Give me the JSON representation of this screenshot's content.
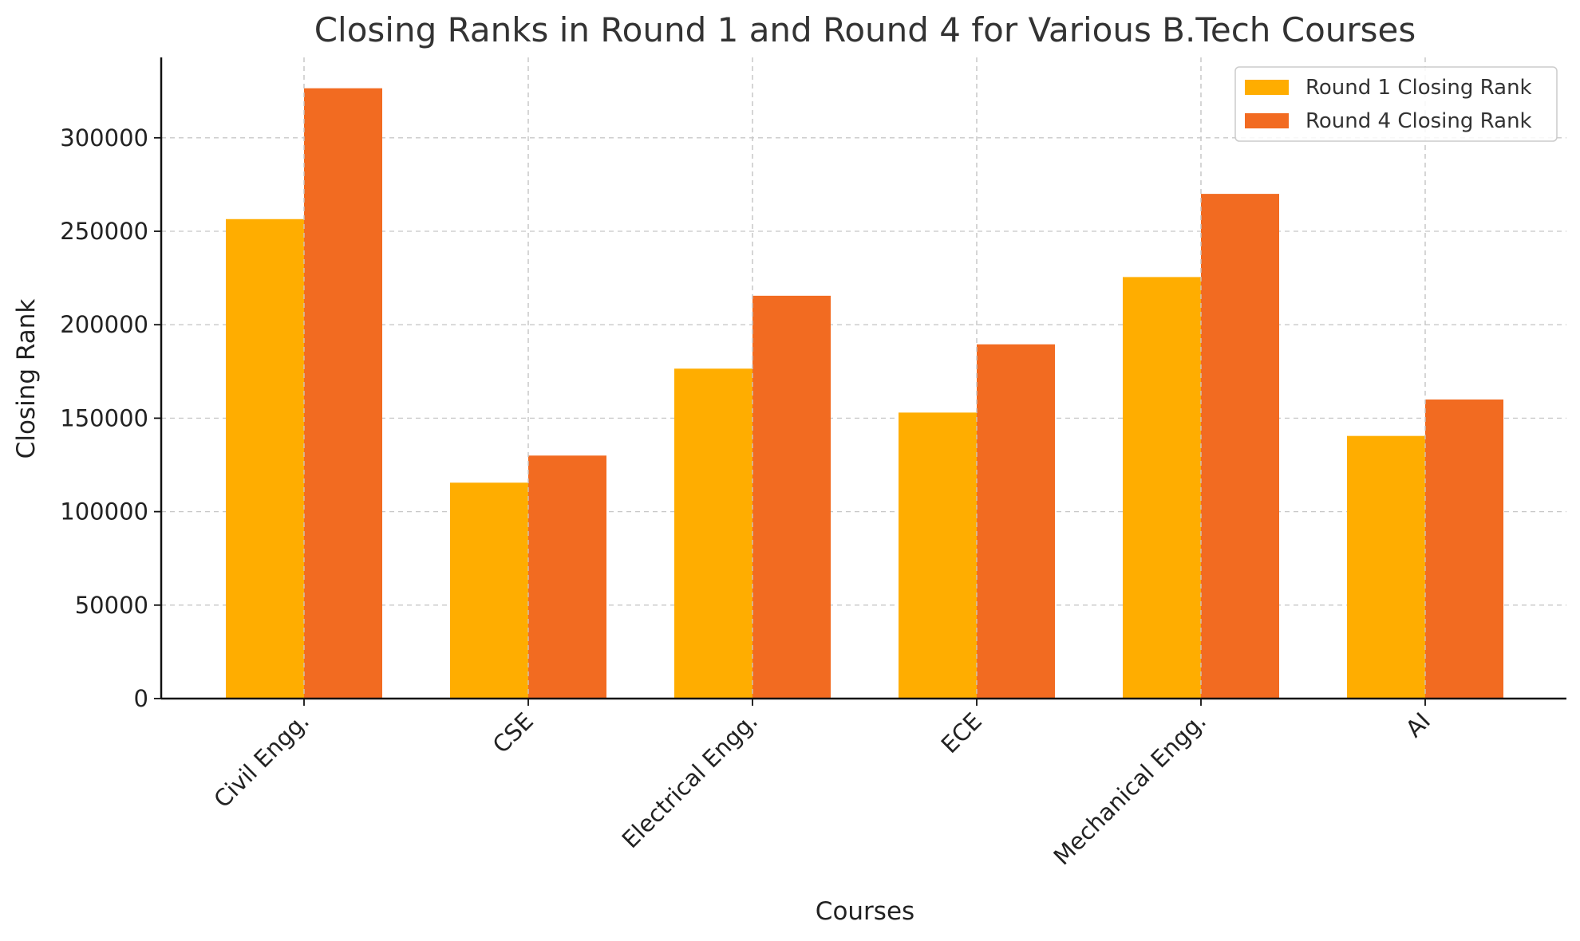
{
  "chart_data": {
    "type": "bar",
    "title": "Closing Ranks in Round 1 and Round 4 for Various B.Tech Courses",
    "xlabel": "Courses",
    "ylabel": "Closing Rank",
    "categories": [
      "Civil Engg.",
      "CSE",
      "Electrical Engg.",
      "ECE",
      "Mechanical Engg.",
      "AI"
    ],
    "series": [
      {
        "name": "Round 1 Closing Rank",
        "color": "#FFAD00",
        "values": [
          256500,
          115500,
          176500,
          153000,
          225500,
          140500
        ]
      },
      {
        "name": "Round 4 Closing Rank",
        "color": "#F26B21",
        "values": [
          326500,
          130000,
          215500,
          189500,
          270000,
          160000
        ]
      }
    ],
    "ylim": [
      0,
      343000
    ],
    "yticks": [
      0,
      50000,
      100000,
      150000,
      200000,
      250000,
      300000
    ],
    "grid": true,
    "legend_position": "top-right"
  }
}
